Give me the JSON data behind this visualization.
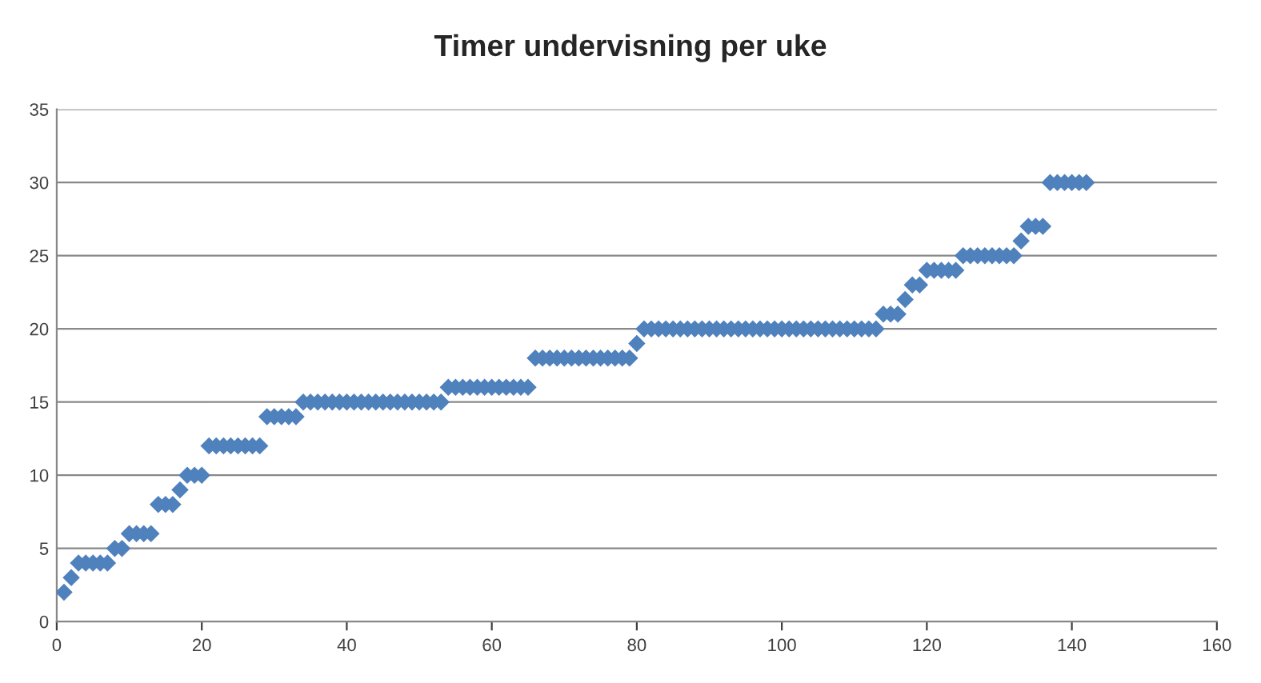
{
  "chart_data": {
    "type": "scatter",
    "title": "Timer undervisning per uke",
    "x": [
      1,
      2,
      3,
      4,
      5,
      6,
      7,
      8,
      9,
      10,
      11,
      12,
      13,
      14,
      15,
      16,
      17,
      18,
      19,
      20,
      21,
      22,
      23,
      24,
      25,
      26,
      27,
      28,
      29,
      30,
      31,
      32,
      33,
      34,
      35,
      36,
      37,
      38,
      39,
      40,
      41,
      42,
      43,
      44,
      45,
      46,
      47,
      48,
      49,
      50,
      51,
      52,
      53,
      54,
      55,
      56,
      57,
      58,
      59,
      60,
      61,
      62,
      63,
      64,
      65,
      66,
      67,
      68,
      69,
      70,
      71,
      72,
      73,
      74,
      75,
      76,
      77,
      78,
      79,
      80,
      81,
      82,
      83,
      84,
      85,
      86,
      87,
      88,
      89,
      90,
      91,
      92,
      93,
      94,
      95,
      96,
      97,
      98,
      99,
      100,
      101,
      102,
      103,
      104,
      105,
      106,
      107,
      108,
      109,
      110,
      111,
      112,
      113,
      114,
      115,
      116,
      117,
      118,
      119,
      120,
      121,
      122,
      123,
      124,
      125,
      126,
      127,
      128,
      129,
      130,
      131,
      132,
      133,
      134,
      135,
      136,
      137,
      138,
      139,
      140,
      141,
      142
    ],
    "series": [
      {
        "color": "#4f81bd",
        "values": [
          2,
          3,
          4,
          4,
          4,
          4,
          4,
          5,
          5,
          6,
          6,
          6,
          6,
          8,
          8,
          8,
          9,
          10,
          10,
          10,
          12,
          12,
          12,
          12,
          12,
          12,
          12,
          12,
          14,
          14,
          14,
          14,
          14,
          15,
          15,
          15,
          15,
          15,
          15,
          15,
          15,
          15,
          15,
          15,
          15,
          15,
          15,
          15,
          15,
          15,
          15,
          15,
          15,
          16,
          16,
          16,
          16,
          16,
          16,
          16,
          16,
          16,
          16,
          16,
          16,
          18,
          18,
          18,
          18,
          18,
          18,
          18,
          18,
          18,
          18,
          18,
          18,
          18,
          18,
          19,
          20,
          20,
          20,
          20,
          20,
          20,
          20,
          20,
          20,
          20,
          20,
          20,
          20,
          20,
          20,
          20,
          20,
          20,
          20,
          20,
          20,
          20,
          20,
          20,
          20,
          20,
          20,
          20,
          20,
          20,
          20,
          20,
          20,
          21,
          21,
          21,
          22,
          23,
          23,
          24,
          24,
          24,
          24,
          24,
          25,
          25,
          25,
          25,
          25,
          25,
          25,
          25,
          26,
          27,
          27,
          27,
          30,
          30,
          30,
          30,
          30,
          30
        ]
      }
    ],
    "xlim": [
      0,
      160
    ],
    "xticks": [
      0,
      20,
      40,
      60,
      80,
      100,
      120,
      140,
      160
    ],
    "ylim": [
      0,
      35
    ],
    "yticks": [
      0,
      5,
      10,
      15,
      20,
      25,
      30,
      35
    ],
    "grid": "y",
    "marker": "diamond"
  }
}
